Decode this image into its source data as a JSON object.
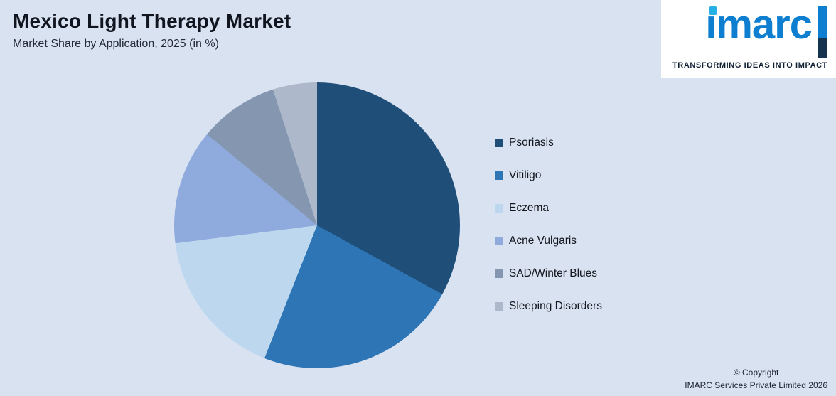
{
  "header": {
    "title": "Mexico Light Therapy Market",
    "subtitle": "Market Share by Application, 2025 (in %)"
  },
  "logo": {
    "brand": "imarc",
    "tagline": "TRANSFORMING IDEAS INTO IMPACT"
  },
  "footer": {
    "line1": "© Copyright",
    "line2": "IMARC Services Private Limited 2026"
  },
  "colors": {
    "background": "#d9e2f1",
    "title_text": "#10151f",
    "logo_blue": "#0e7fd0",
    "logo_dot_cyan": "#27b0e6",
    "logo_stripe_dark": "#15324f",
    "tagline_text": "#0f2033"
  },
  "chart_data": {
    "type": "pie",
    "title": "Mexico Light Therapy Market",
    "subtitle": "Market Share by Application, 2025 (in %)",
    "unit": "%",
    "start_angle_deg": 0,
    "direction": "clockwise",
    "legend_position": "right",
    "labels": [
      "Psoriasis",
      "Vitiligo",
      "Eczema",
      "Acne Vulgaris",
      "SAD/Winter Blues",
      "Sleeping Disorders"
    ],
    "values": [
      33,
      23,
      17,
      13,
      9,
      5
    ],
    "colors": [
      "#1f4e79",
      "#2e75b6",
      "#bdd7ee",
      "#8faadc",
      "#8496b0",
      "#adb9ca"
    ]
  }
}
